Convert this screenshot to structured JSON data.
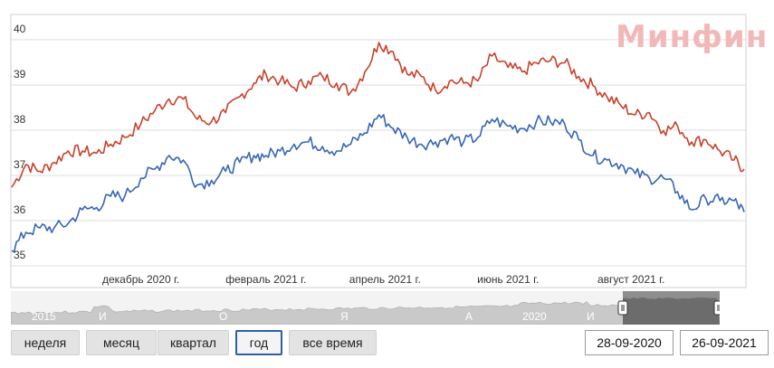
{
  "watermark": "Минфин",
  "chart_data": {
    "type": "line",
    "ylim": [
      34.8,
      40.2
    ],
    "yticks": [
      35,
      36,
      37,
      38,
      39,
      40
    ],
    "x_range": [
      "2020-09-28",
      "2021-09-26"
    ],
    "x_ticks": [
      {
        "date": "2020-12-01",
        "label": "декабрь 2020 г."
      },
      {
        "date": "2021-02-01",
        "label": "февраль 2021 г."
      },
      {
        "date": "2021-04-01",
        "label": "апрель 2021 г."
      },
      {
        "date": "2021-06-01",
        "label": "июнь 2021 г."
      },
      {
        "date": "2021-08-01",
        "label": "август 2021 г."
      }
    ],
    "grid": true,
    "series": [
      {
        "color": "#c8412b",
        "points": [
          [
            "2020-09-28",
            36.5
          ],
          [
            "2020-10-05",
            37.0
          ],
          [
            "2020-10-12",
            36.85
          ],
          [
            "2020-10-19",
            37.05
          ],
          [
            "2020-10-26",
            37.3
          ],
          [
            "2020-11-02",
            37.3
          ],
          [
            "2020-11-09",
            37.25
          ],
          [
            "2020-11-16",
            37.45
          ],
          [
            "2020-11-23",
            37.6
          ],
          [
            "2020-12-01",
            37.9
          ],
          [
            "2020-12-08",
            38.2
          ],
          [
            "2020-12-15",
            38.45
          ],
          [
            "2020-12-22",
            38.45
          ],
          [
            "2020-12-29",
            38.0
          ],
          [
            "2021-01-05",
            37.95
          ],
          [
            "2021-01-12",
            38.15
          ],
          [
            "2021-01-19",
            38.5
          ],
          [
            "2021-01-26",
            38.8
          ],
          [
            "2021-02-01",
            39.0
          ],
          [
            "2021-02-08",
            38.85
          ],
          [
            "2021-02-15",
            38.7
          ],
          [
            "2021-02-22",
            38.85
          ],
          [
            "2021-03-01",
            38.95
          ],
          [
            "2021-03-08",
            38.8
          ],
          [
            "2021-03-15",
            38.6
          ],
          [
            "2021-03-22",
            39.05
          ],
          [
            "2021-03-29",
            39.7
          ],
          [
            "2021-04-05",
            39.5
          ],
          [
            "2021-04-12",
            39.0
          ],
          [
            "2021-04-19",
            38.95
          ],
          [
            "2021-04-26",
            38.65
          ],
          [
            "2021-05-03",
            38.85
          ],
          [
            "2021-05-10",
            38.8
          ],
          [
            "2021-05-17",
            38.85
          ],
          [
            "2021-05-24",
            39.4
          ],
          [
            "2021-06-01",
            39.15
          ],
          [
            "2021-06-08",
            39.05
          ],
          [
            "2021-06-15",
            39.25
          ],
          [
            "2021-06-22",
            39.3
          ],
          [
            "2021-06-29",
            39.25
          ],
          [
            "2021-07-06",
            38.95
          ],
          [
            "2021-07-13",
            38.75
          ],
          [
            "2021-07-20",
            38.5
          ],
          [
            "2021-07-27",
            38.3
          ],
          [
            "2021-08-03",
            38.1
          ],
          [
            "2021-08-10",
            38.15
          ],
          [
            "2021-08-17",
            37.75
          ],
          [
            "2021-08-24",
            37.85
          ],
          [
            "2021-08-31",
            37.5
          ],
          [
            "2021-09-07",
            37.55
          ],
          [
            "2021-09-14",
            37.3
          ],
          [
            "2021-09-21",
            37.1
          ],
          [
            "2021-09-26",
            36.9
          ]
        ]
      },
      {
        "color": "#3666b5",
        "points": [
          [
            "2020-09-28",
            35.1
          ],
          [
            "2020-10-05",
            35.5
          ],
          [
            "2020-10-12",
            35.6
          ],
          [
            "2020-10-19",
            35.6
          ],
          [
            "2020-10-26",
            35.7
          ],
          [
            "2020-11-02",
            36.0
          ],
          [
            "2020-11-09",
            36.05
          ],
          [
            "2020-11-16",
            36.3
          ],
          [
            "2020-11-23",
            36.3
          ],
          [
            "2020-12-01",
            36.7
          ],
          [
            "2020-12-08",
            36.9
          ],
          [
            "2020-12-15",
            37.2
          ],
          [
            "2020-12-22",
            37.1
          ],
          [
            "2020-12-29",
            36.55
          ],
          [
            "2021-01-05",
            36.65
          ],
          [
            "2021-01-12",
            36.85
          ],
          [
            "2021-01-19",
            37.05
          ],
          [
            "2021-01-26",
            37.2
          ],
          [
            "2021-02-01",
            37.2
          ],
          [
            "2021-02-08",
            37.3
          ],
          [
            "2021-02-15",
            37.45
          ],
          [
            "2021-02-22",
            37.5
          ],
          [
            "2021-03-01",
            37.4
          ],
          [
            "2021-03-08",
            37.3
          ],
          [
            "2021-03-15",
            37.45
          ],
          [
            "2021-03-22",
            37.7
          ],
          [
            "2021-03-29",
            38.1
          ],
          [
            "2021-04-05",
            37.8
          ],
          [
            "2021-04-12",
            37.6
          ],
          [
            "2021-04-19",
            37.45
          ],
          [
            "2021-04-26",
            37.5
          ],
          [
            "2021-05-03",
            37.6
          ],
          [
            "2021-05-10",
            37.5
          ],
          [
            "2021-05-17",
            37.6
          ],
          [
            "2021-05-24",
            38.0
          ],
          [
            "2021-06-01",
            37.85
          ],
          [
            "2021-06-08",
            37.8
          ],
          [
            "2021-06-15",
            37.95
          ],
          [
            "2021-06-22",
            37.95
          ],
          [
            "2021-06-29",
            37.9
          ],
          [
            "2021-07-06",
            37.55
          ],
          [
            "2021-07-13",
            37.2
          ],
          [
            "2021-07-20",
            37.1
          ],
          [
            "2021-07-27",
            37.0
          ],
          [
            "2021-08-03",
            36.8
          ],
          [
            "2021-08-10",
            36.7
          ],
          [
            "2021-08-17",
            36.7
          ],
          [
            "2021-08-24",
            36.4
          ],
          [
            "2021-08-31",
            36.0
          ],
          [
            "2021-09-07",
            36.25
          ],
          [
            "2021-09-14",
            36.2
          ],
          [
            "2021-09-21",
            36.2
          ],
          [
            "2021-09-26",
            35.95
          ]
        ]
      }
    ]
  },
  "navigator": {
    "labels": [
      "2015",
      "И",
      "О",
      "Я",
      "А",
      "2020",
      "И"
    ]
  },
  "range_buttons": [
    {
      "label": "неделя",
      "active": false
    },
    {
      "label": "месяц",
      "active": false
    },
    {
      "label": "квартал",
      "active": false
    },
    {
      "label": "год",
      "active": true
    },
    {
      "label": "все время",
      "active": false
    }
  ],
  "date_from": "28-09-2020",
  "date_to": "26-09-2021"
}
